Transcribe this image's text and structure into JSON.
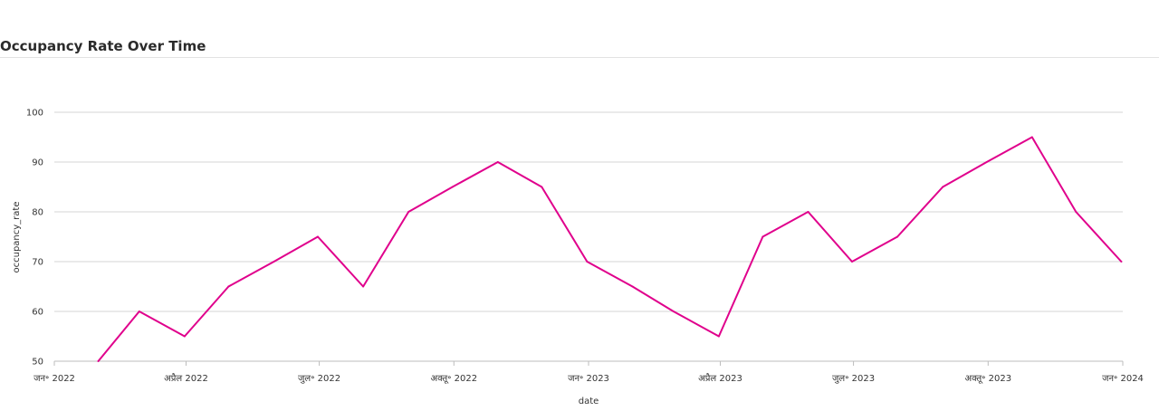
{
  "page": {
    "title": "Occupancy Rate Over Time"
  },
  "chart_data": {
    "type": "line",
    "title": "Occupancy Rate Over Time",
    "xlabel": "date",
    "ylabel": "occupancy_rate",
    "ylim": [
      50,
      100
    ],
    "yticks": [
      50,
      60,
      70,
      80,
      90,
      100
    ],
    "x_range": [
      "2022-01-01",
      "2024-01-01"
    ],
    "xticks": [
      {
        "date": "2022-01-01",
        "label": "जन॰ 2022"
      },
      {
        "date": "2022-04-01",
        "label": "अप्रैल 2022"
      },
      {
        "date": "2022-07-01",
        "label": "जुल॰ 2022"
      },
      {
        "date": "2022-10-01",
        "label": "अक्तू॰ 2022"
      },
      {
        "date": "2023-01-01",
        "label": "जन॰ 2023"
      },
      {
        "date": "2023-04-01",
        "label": "अप्रैल 2023"
      },
      {
        "date": "2023-07-01",
        "label": "जुल॰ 2023"
      },
      {
        "date": "2023-10-01",
        "label": "अक्तू॰ 2023"
      },
      {
        "date": "2024-01-01",
        "label": "जन॰ 2024"
      }
    ],
    "grid": true,
    "series": [
      {
        "color": "#e0008c",
        "points": [
          {
            "x": "2022-01-31",
            "y": 50
          },
          {
            "x": "2022-02-28",
            "y": 60
          },
          {
            "x": "2022-03-31",
            "y": 55
          },
          {
            "x": "2022-04-30",
            "y": 65
          },
          {
            "x": "2022-05-31",
            "y": 70
          },
          {
            "x": "2022-06-30",
            "y": 75
          },
          {
            "x": "2022-07-31",
            "y": 65
          },
          {
            "x": "2022-08-31",
            "y": 80
          },
          {
            "x": "2022-09-30",
            "y": 85
          },
          {
            "x": "2022-10-31",
            "y": 90
          },
          {
            "x": "2022-11-30",
            "y": 85
          },
          {
            "x": "2022-12-31",
            "y": 70
          },
          {
            "x": "2023-01-31",
            "y": 65
          },
          {
            "x": "2023-02-28",
            "y": 60
          },
          {
            "x": "2023-03-31",
            "y": 55
          },
          {
            "x": "2023-04-30",
            "y": 75
          },
          {
            "x": "2023-05-31",
            "y": 80
          },
          {
            "x": "2023-06-30",
            "y": 70
          },
          {
            "x": "2023-07-31",
            "y": 75
          },
          {
            "x": "2023-08-31",
            "y": 85
          },
          {
            "x": "2023-09-30",
            "y": 90
          },
          {
            "x": "2023-10-31",
            "y": 95
          },
          {
            "x": "2023-11-30",
            "y": 80
          },
          {
            "x": "2023-12-31",
            "y": 70
          }
        ]
      }
    ]
  }
}
